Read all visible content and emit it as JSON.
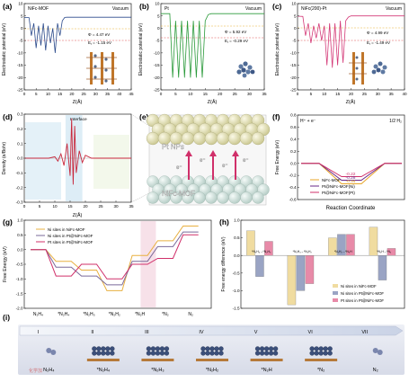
{
  "panels": {
    "a": {
      "letter": "(a)",
      "title": "NiFc-MOF",
      "env": "Vacuum",
      "phi": "Φ = 4.47 eV",
      "ef": "E",
      "ef_sub": "f",
      "ef_val": " = -1.15 eV",
      "xlabel": "Z(Å)",
      "ylabel": "Electrostatic potential (eV)",
      "xticks": [
        "0",
        "5",
        "10",
        "15",
        "20",
        "25",
        "30",
        "35",
        "40",
        "45"
      ],
      "yticks": [
        "10",
        "5",
        "0",
        "-5",
        "-10",
        "-15",
        "-20",
        "-25"
      ]
    },
    "b": {
      "letter": "(b)",
      "title": "Pt",
      "env": "Vacuum",
      "phi": "Φ = 5.92 eV",
      "ef": "E",
      "ef_sub": "f",
      "ef_val": " = -0.29 eV",
      "xlabel": "Z(Å)",
      "ylabel": "Electrostatic potential (eV)",
      "xticks": [
        "0",
        "5",
        "10",
        "15",
        "20",
        "25",
        "30",
        "35"
      ],
      "yticks": [
        "10",
        "5",
        "0",
        "-5",
        "-10",
        "-15",
        "-20",
        "-25"
      ]
    },
    "c": {
      "letter": "(c)",
      "title": "NiFc(200)-Pt",
      "env": "Vacuum",
      "phi": "Φ = 4.99 eV",
      "ef": "E",
      "ef_sub": "f",
      "ef_val": " = -1.49 eV",
      "xlabel": "Z(Å)",
      "ylabel": "Electrostatic potential (eV)",
      "xticks": [
        "0",
        "5",
        "10",
        "15",
        "20",
        "25",
        "30",
        "35",
        "40"
      ],
      "yticks": [
        "10",
        "5",
        "0",
        "-5",
        "-10",
        "-15",
        "-20",
        "-25"
      ]
    },
    "d": {
      "letter": "(d)",
      "interface": "Interface",
      "xlabel": "Z(Å)",
      "ylabel": "Density (e/Bohr)",
      "xticks": [
        "0",
        "5",
        "10",
        "15",
        "20",
        "25",
        "30",
        "35"
      ],
      "yticks": [
        "0.3",
        "0.2",
        "0.1",
        "0.0",
        "-0.1",
        "-0.2",
        "-0.3"
      ]
    },
    "e": {
      "letter": "(e)",
      "top_label": "Pt NPs",
      "bottom_label": "NiFc-MOF",
      "electron": "e⁻"
    },
    "f": {
      "letter": "(f)",
      "left_label": "H⁺ + e⁻",
      "right_label": "1/2 H₂",
      "xlabel": "Reaction Coordinate",
      "ylabel": "Free Energy (eV)",
      "yticks": [
        "0.8",
        "0.6",
        "0.4",
        "0.2",
        "0.0",
        "-0.2",
        "-0.4",
        "-0.6"
      ],
      "values": [
        "-0.22",
        "-0.28",
        "-0.34"
      ],
      "legend": [
        "NiFc-MOF",
        "Pt@NiFc-MOF(Ni)",
        "Pt@NiFc-MOF(Pt)"
      ]
    },
    "g": {
      "letter": "(g)",
      "ylabel": "Free Energy (eV)",
      "yticks": [
        "1.0",
        "0.5",
        "0.0",
        "-0.5",
        "-1.0",
        "-1.5",
        "-2.0"
      ],
      "legend": [
        "Ni sites in NiFc-MOF",
        "Ni sites in Pt@NiFc-MOF",
        "Pt sites in Pt@NiFc-MOF"
      ],
      "steps": [
        "N₂H₄",
        "*N₂H₄",
        "*N₂H₃",
        "*N₂H₂",
        "*N₂H",
        "*N₂",
        "N₂"
      ]
    },
    "h": {
      "letter": "(h)",
      "ylabel": "Free energy difference (eV)",
      "yticks": [
        "1.0",
        "0.5",
        "0.0",
        "-0.5",
        "-1.0",
        "-1.5"
      ],
      "group_labels": [
        "*N₂H₄→*N₂H₃",
        "*N₂H₃→*N₂H₂",
        "*N₂H₂→*N₂H",
        "*N₂H→*N₂"
      ],
      "legend": [
        "Ni sites in NiFc-MOF",
        "Ni sites in Pt@NiFc-MOF",
        "Pt sites in Pt@NiFc-MOF"
      ]
    },
    "i": {
      "letter": "(i)",
      "stages": [
        "I",
        "II",
        "III",
        "IV",
        "V",
        "VI",
        "VII"
      ],
      "species": [
        "N₂H₄",
        "*N₂H₄",
        "*N₂H₃",
        "*N₂H₂",
        "*N₂H",
        "*N₂",
        "N₂"
      ],
      "watermark": "化学加"
    }
  },
  "chart_data": [
    {
      "panel": "a",
      "type": "line",
      "title": "NiFc-MOF",
      "xlabel": "Z(Å)",
      "ylabel": "Electrostatic potential (eV)",
      "xlim": [
        0,
        45
      ],
      "ylim": [
        -25,
        10
      ],
      "x": [
        0,
        2,
        3,
        4,
        5,
        6,
        7,
        8,
        9,
        10,
        11,
        12,
        13,
        14,
        15,
        16,
        17,
        18,
        20,
        45
      ],
      "y": [
        4.4,
        4.3,
        -3,
        2,
        -8,
        1,
        -7,
        2,
        -9,
        1,
        -6,
        0,
        -10,
        2,
        -3,
        3,
        4.4,
        4.47,
        4.47,
        4.47
      ],
      "reference_lines": {
        "work_function": 4.47,
        "fermi": -1.15
      },
      "colors": {
        "line": "#2c4b8c",
        "vacuum_dash": "#e8b030",
        "fermi_dash": "#e05050"
      }
    },
    {
      "panel": "b",
      "type": "line",
      "title": "Pt",
      "xlabel": "Z(Å)",
      "ylabel": "Electrostatic potential (eV)",
      "xlim": [
        0,
        35
      ],
      "ylim": [
        -25,
        10
      ],
      "x": [
        0,
        3,
        4,
        5,
        6,
        7,
        8,
        9,
        10,
        11,
        12,
        13,
        14,
        15,
        16,
        17,
        18,
        21,
        35
      ],
      "y": [
        5.9,
        5.9,
        -20,
        3,
        -20,
        3,
        -20,
        3,
        -20,
        3,
        -20,
        3,
        -20,
        3,
        5.5,
        5.9,
        5.92,
        5.92,
        5.92
      ],
      "reference_lines": {
        "work_function": 5.92,
        "fermi": -0.29
      },
      "colors": {
        "line": "#2a9a3a",
        "vacuum_dash": "#e8b030",
        "fermi_dash": "#e05050"
      }
    },
    {
      "panel": "c",
      "type": "line",
      "title": "NiFc(200)-Pt",
      "xlabel": "Z(Å)",
      "ylabel": "Electrostatic potential (eV)",
      "xlim": [
        0,
        40
      ],
      "ylim": [
        -25,
        10
      ],
      "x": [
        0,
        2,
        3,
        4,
        5,
        6,
        7,
        8,
        9,
        10,
        11,
        12,
        13,
        14,
        15,
        16,
        17,
        18,
        19,
        20,
        22,
        40
      ],
      "y": [
        4.9,
        4.8,
        -3,
        2,
        -6,
        1,
        -4,
        2,
        -5,
        1,
        -15,
        2,
        -16,
        2,
        -15,
        3,
        -14,
        3,
        4.5,
        4.99,
        4.99,
        4.99
      ],
      "reference_lines": {
        "work_function": 4.99,
        "fermi": -1.49
      },
      "colors": {
        "line": "#d43a78",
        "vacuum_dash": "#e8b030",
        "fermi_dash": "#e05050"
      }
    },
    {
      "panel": "d",
      "type": "line",
      "xlabel": "Z(Å)",
      "ylabel": "Density (e/Bohr)",
      "xlim": [
        0,
        35
      ],
      "ylim": [
        -0.3,
        0.3
      ],
      "interface_range": [
        13.5,
        19
      ],
      "x": [
        0,
        8,
        10,
        11,
        12,
        13,
        14,
        15,
        15.5,
        16,
        16.5,
        17,
        18,
        19,
        20,
        22,
        35
      ],
      "y": [
        0,
        0,
        0.01,
        -0.02,
        0.03,
        -0.05,
        0.1,
        -0.12,
        0.27,
        -0.18,
        0.22,
        -0.1,
        0.05,
        -0.03,
        0.02,
        0,
        0
      ],
      "colors": {
        "line": "#c8283c",
        "interface": "#d4e8f4"
      }
    },
    {
      "panel": "f",
      "type": "line",
      "xlabel": "Reaction Coordinate",
      "ylabel": "Free Energy (eV)",
      "ylim": [
        -0.6,
        0.8
      ],
      "categories": [
        "H⁺ + e⁻",
        "H*",
        "1/2 H₂"
      ],
      "series": [
        {
          "name": "NiFc-MOF",
          "values": [
            0,
            -0.34,
            0
          ],
          "color": "#e8a628"
        },
        {
          "name": "Pt@NiFc-MOF(Ni)",
          "values": [
            0,
            -0.28,
            0
          ],
          "color": "#6a2a8a"
        },
        {
          "name": "Pt@NiFc-MOF(Pt)",
          "values": [
            0,
            -0.22,
            0
          ],
          "color": "#d0306a"
        }
      ]
    },
    {
      "panel": "g",
      "type": "line",
      "ylabel": "Free Energy (eV)",
      "ylim": [
        -2.0,
        1.0
      ],
      "categories": [
        "N₂H₄",
        "*N₂H₄",
        "*N₂H₃",
        "*N₂H₂",
        "*N₂H",
        "*N₂",
        "N₂"
      ],
      "series": [
        {
          "name": "Ni sites in NiFc-MOF",
          "values": [
            0,
            -0.4,
            -0.7,
            -1.4,
            -0.2,
            0.3,
            0.8
          ],
          "color": "#e8b040"
        },
        {
          "name": "Ni sites in Pt@NiFc-MOF",
          "values": [
            0,
            -0.6,
            -0.9,
            -1.2,
            -0.4,
            0.1,
            0.6
          ],
          "color": "#7a6a9a"
        },
        {
          "name": "Pt sites in Pt@NiFc-MOF",
          "values": [
            0,
            -0.9,
            -0.5,
            -1.0,
            -0.5,
            -0.3,
            0.5
          ],
          "color": "#d0306a"
        }
      ]
    },
    {
      "panel": "h",
      "type": "bar",
      "ylabel": "Free energy difference (eV)",
      "ylim": [
        -1.5,
        1.0
      ],
      "categories": [
        "*N₂H₄→*N₂H₃",
        "*N₂H₃→*N₂H₂",
        "*N₂H₂→*N₂H",
        "*N₂H→*N₂"
      ],
      "series": [
        {
          "name": "Ni sites in NiFc-MOF",
          "values": [
            0.7,
            -1.4,
            0.5,
            0.8
          ],
          "color": "#f0dca0"
        },
        {
          "name": "Ni sites in Pt@NiFc-MOF",
          "values": [
            -0.6,
            -1.0,
            0.6,
            -0.7
          ],
          "color": "#9aa4c4"
        },
        {
          "name": "Pt sites in Pt@NiFc-MOF",
          "values": [
            0.4,
            -0.8,
            0.6,
            0.2
          ],
          "color": "#e88aa8"
        }
      ]
    }
  ]
}
